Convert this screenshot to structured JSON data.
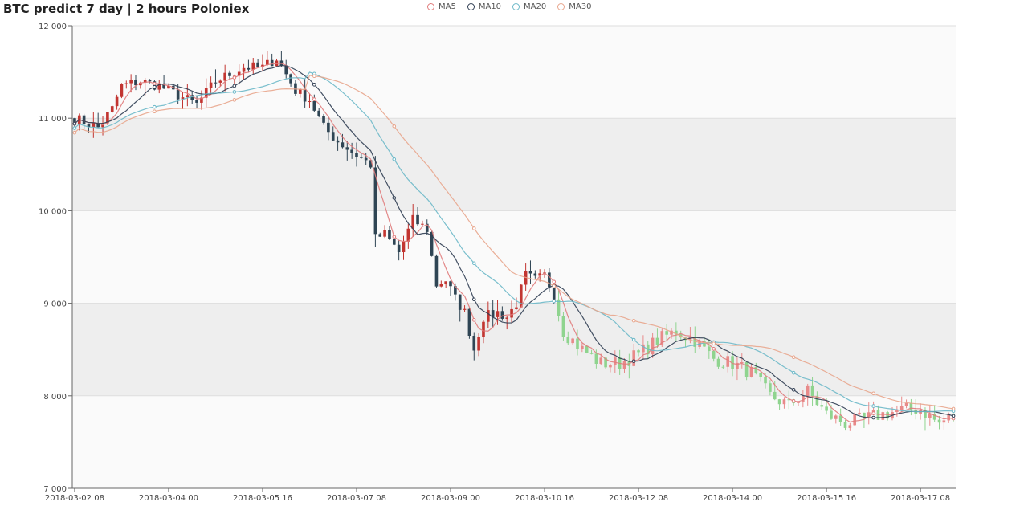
{
  "title": "BTC predict 7 day | 2 hours Poloniex",
  "legend": [
    {
      "name": "MA5",
      "color": "#e07b7b"
    },
    {
      "name": "MA10",
      "color": "#2f3d52"
    },
    {
      "name": "MA20",
      "color": "#6bb8c8"
    },
    {
      "name": "MA30",
      "color": "#e8a58c"
    }
  ],
  "colors": {
    "up": "#c23531",
    "down": "#2f4554",
    "predict_up": "#e88a8a",
    "predict_down": "#8fd48f",
    "band_light": "#fafafa",
    "band_dark": "#eeeeee"
  },
  "chart_data": {
    "type": "candlestick",
    "title": "BTC predict 7 day | 2 hours Poloniex",
    "xlabel": "",
    "ylabel": "",
    "ylim": [
      7000,
      12000
    ],
    "y_ticks": [
      "12 000",
      "11 000",
      "10 000",
      "9 000",
      "8 000",
      "7 000"
    ],
    "y_tick_values": [
      12000,
      11000,
      10000,
      9000,
      8000,
      7000
    ],
    "x_ticks": [
      "2018-03-02 08",
      "2018-03-04 00",
      "2018-03-05 16",
      "2018-03-07 08",
      "2018-03-09 00",
      "2018-03-10 16",
      "2018-03-12 08",
      "2018-03-14 00",
      "2018-03-15 16",
      "2018-03-17 08"
    ],
    "x_tick_index": [
      0,
      20,
      40,
      60,
      80,
      100,
      120,
      140,
      160,
      180
    ],
    "grid": "alternating horizontal bands",
    "legend_position": "top-center",
    "historical_count": 103,
    "predicted_count": 85,
    "series": [
      {
        "name": "MA5",
        "values": []
      },
      {
        "name": "MA10",
        "values": []
      },
      {
        "name": "MA20",
        "values": []
      },
      {
        "name": "MA30",
        "values": []
      }
    ],
    "close_anchors": [
      [
        0,
        11000
      ],
      [
        5,
        10900
      ],
      [
        8,
        11100
      ],
      [
        10,
        11350
      ],
      [
        14,
        11400
      ],
      [
        18,
        11350
      ],
      [
        22,
        11250
      ],
      [
        26,
        11150
      ],
      [
        30,
        11400
      ],
      [
        36,
        11550
      ],
      [
        40,
        11550
      ],
      [
        43,
        11650
      ],
      [
        47,
        11300
      ],
      [
        50,
        11200
      ],
      [
        53,
        10900
      ],
      [
        56,
        10750
      ],
      [
        60,
        10600
      ],
      [
        63,
        10500
      ],
      [
        64,
        9700
      ],
      [
        66,
        9750
      ],
      [
        69,
        9550
      ],
      [
        72,
        9900
      ],
      [
        75,
        9800
      ],
      [
        77,
        9200
      ],
      [
        79,
        9250
      ],
      [
        81,
        9050
      ],
      [
        83,
        8900
      ],
      [
        85,
        8500
      ],
      [
        87,
        8850
      ],
      [
        90,
        8900
      ],
      [
        92,
        8850
      ],
      [
        94,
        9000
      ],
      [
        96,
        9300
      ],
      [
        98,
        9250
      ],
      [
        100,
        9300
      ],
      [
        102,
        9100
      ],
      [
        104,
        8700
      ],
      [
        108,
        8500
      ],
      [
        112,
        8350
      ],
      [
        116,
        8350
      ],
      [
        120,
        8450
      ],
      [
        124,
        8600
      ],
      [
        128,
        8700
      ],
      [
        132,
        8600
      ],
      [
        136,
        8400
      ],
      [
        140,
        8350
      ],
      [
        144,
        8250
      ],
      [
        148,
        8000
      ],
      [
        152,
        7900
      ],
      [
        156,
        8050
      ],
      [
        160,
        7800
      ],
      [
        164,
        7700
      ],
      [
        168,
        7750
      ],
      [
        172,
        7800
      ],
      [
        176,
        7850
      ],
      [
        180,
        7850
      ],
      [
        184,
        7700
      ],
      [
        187,
        7800
      ]
    ]
  }
}
